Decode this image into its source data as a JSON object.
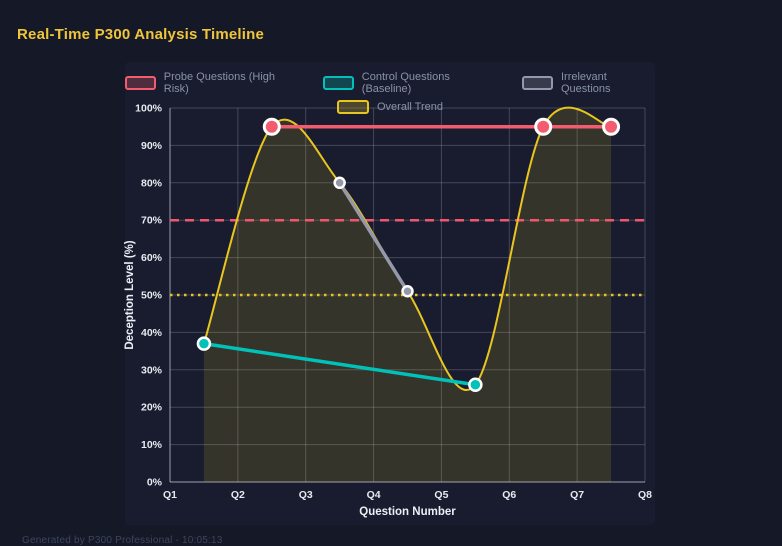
{
  "page": {
    "bg": "#141827",
    "card_bg": "#181c2e"
  },
  "header": {
    "title": "Real-Time P300 Analysis Timeline",
    "title_color": "#f0c53a"
  },
  "legend": {
    "items": [
      {
        "label": "Probe Questions (High Risk)",
        "color": "#f25c6e"
      },
      {
        "label": "Control Questions (Baseline)",
        "color": "#00c2b8"
      },
      {
        "label": "Irrelevant Questions",
        "color": "#9498a8"
      },
      {
        "label": "Overall Trend",
        "color": "#e9c51f"
      }
    ]
  },
  "footer": {
    "text": "Generated by P300 Professional - 10:05:13"
  },
  "chart_data": {
    "type": "line",
    "title": "Real-Time P300 Analysis Timeline",
    "xlabel": "Question Number",
    "ylabel": "Deception Level (%)",
    "x_ticks": [
      "Q1",
      "Q2",
      "Q3",
      "Q4",
      "Q5",
      "Q6",
      "Q7",
      "Q8"
    ],
    "x_range": [
      1,
      8
    ],
    "ylim": [
      0,
      100
    ],
    "y_tick_step": 10,
    "y_tick_suffix": "%",
    "grid": true,
    "legend_position": "top",
    "series": [
      {
        "name": "Overall Trend",
        "line_style": "spline-area",
        "color": "#e9c51f",
        "fill": "rgba(233,197,31,0.14)",
        "width": 2,
        "points": [
          [
            1.5,
            37
          ],
          [
            2.5,
            95
          ],
          [
            3.5,
            80
          ],
          [
            4.5,
            51
          ],
          [
            5.5,
            26
          ],
          [
            6.5,
            95
          ],
          [
            7.5,
            95
          ]
        ],
        "markers": false
      },
      {
        "name": "Irrelevant Questions",
        "line_style": "straight",
        "color": "#9498a8",
        "width": 3.5,
        "points": [
          [
            3.5,
            80
          ],
          [
            4.5,
            51
          ]
        ],
        "markers": true,
        "marker_radius": 5,
        "marker_stroke": 2.5
      },
      {
        "name": "Control Questions (Baseline)",
        "line_style": "straight",
        "color": "#00c2b8",
        "width": 3.5,
        "points": [
          [
            1.5,
            37
          ],
          [
            5.5,
            26
          ]
        ],
        "markers": true,
        "marker_radius": 6,
        "marker_stroke": 2.5
      },
      {
        "name": "Probe Questions (High Risk)",
        "line_style": "straight",
        "color": "#f25c6e",
        "width": 3.5,
        "points": [
          [
            2.5,
            95
          ],
          [
            6.5,
            95
          ],
          [
            7.5,
            95
          ]
        ],
        "markers": true,
        "marker_radius": 7.5,
        "marker_stroke": 3
      }
    ],
    "threshold_lines": [
      {
        "value": 70,
        "color": "#f1566d",
        "dash": "9 6",
        "width": 2.5
      },
      {
        "value": 50,
        "color": "#e9c51f",
        "dash": "2.5 4.5",
        "width": 2.5
      }
    ]
  }
}
